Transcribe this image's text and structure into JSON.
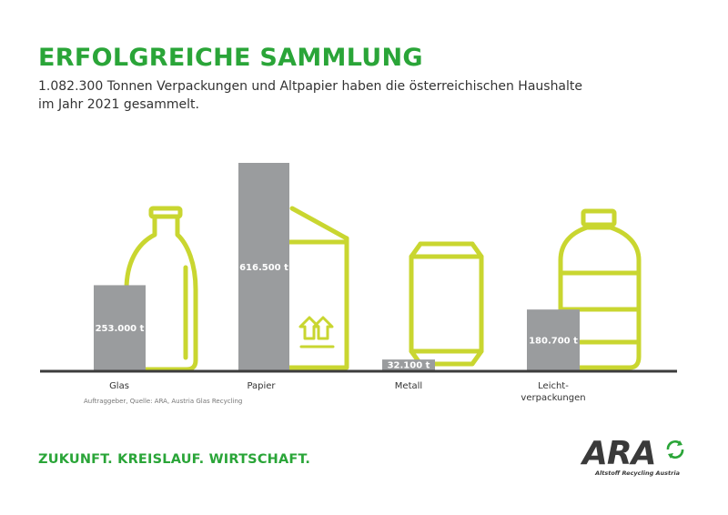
{
  "header": {
    "title": "ERFOLGREICHE SAMMLUNG",
    "subtitle": "1.082.300 Tonnen Verpackungen und Altpapier haben die österreichischen Haushalte im Jahr 2021 gesammelt."
  },
  "chart_data": {
    "type": "bar",
    "categories": [
      "Glas",
      "Papier",
      "Metall",
      "Leicht-\nverpackungen"
    ],
    "values": [
      253000,
      616500,
      32100,
      180700
    ],
    "value_labels": [
      "253.000 t",
      "616.500 t",
      "32.100 t",
      "180.700 t"
    ],
    "unit": "t",
    "grid": false,
    "colors": {
      "bar": "#9a9c9e",
      "illustration": "#c9d630",
      "baseline": "#3c3c3c",
      "label": "#ffffff"
    },
    "illustrations": [
      "bottle-icon",
      "box-icon",
      "can-icon",
      "plastic-bottle-icon"
    ]
  },
  "footer": {
    "source": "Auftraggeber, Quelle: ARA, Austria Glas Recycling",
    "tagline": "ZUKUNFT. KREISLAUF. WIRTSCHAFT.",
    "logo_text": "ARA",
    "logo_sub": "Altstoff Recycling Austria",
    "logo_icon": "recycling-arrows-icon"
  }
}
